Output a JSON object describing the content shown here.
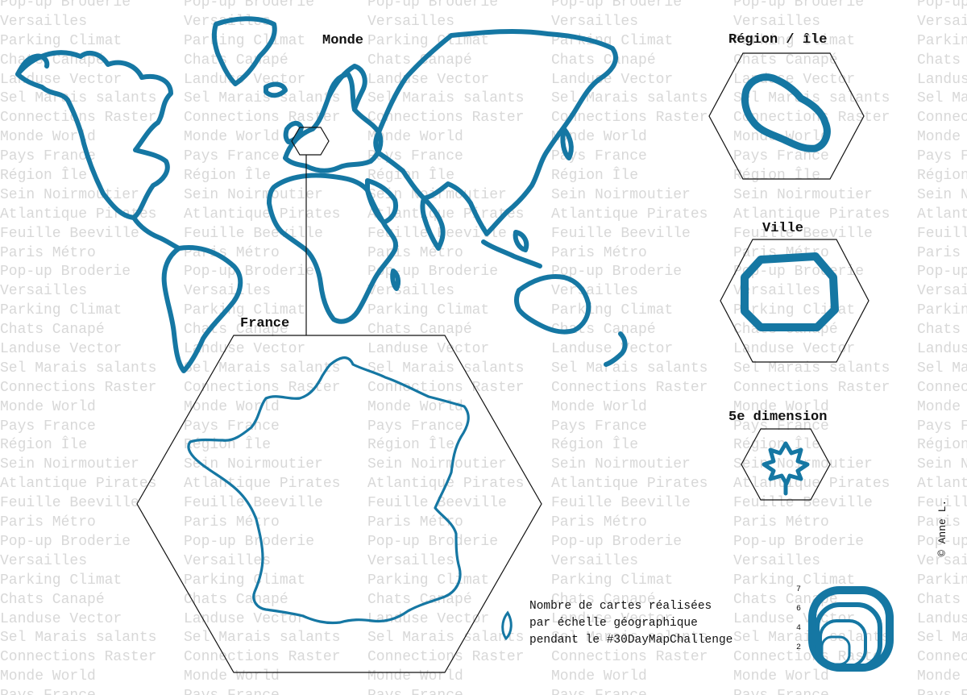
{
  "background_words": [
    "Pop-up Broderie",
    "Versailles",
    "Parking Climat",
    "Chats Canapé",
    "Landuse Vector",
    "Sel Marais salants",
    "Connections Raster",
    "Monde World",
    "Pays France",
    "Région Île",
    "Sein Noirmoutier",
    "Atlantique Pirates",
    "Feuille Beeville",
    "Paris Métro"
  ],
  "labels": {
    "world": "Monde",
    "france": "France",
    "region": "Région / île",
    "city": "Ville",
    "fifth": "5e dimension"
  },
  "caption": {
    "line1": "Nombre de cartes réalisées",
    "line2": "par échelle géographique",
    "line3": "pendant le #30DayMapChallenge"
  },
  "credit": "© Anne L.",
  "legend": {
    "ticks": [
      "7",
      "6",
      "4",
      "2"
    ]
  },
  "colors": {
    "map_stroke": "#1577a3",
    "outline": "#111111",
    "background_text": "#d8d8d8"
  },
  "chart_data": {
    "type": "bar",
    "categories": [
      "Monde",
      "France",
      "Région / île",
      "Ville",
      "5e dimension"
    ],
    "legend_values": [
      7,
      6,
      4,
      2
    ]
  }
}
